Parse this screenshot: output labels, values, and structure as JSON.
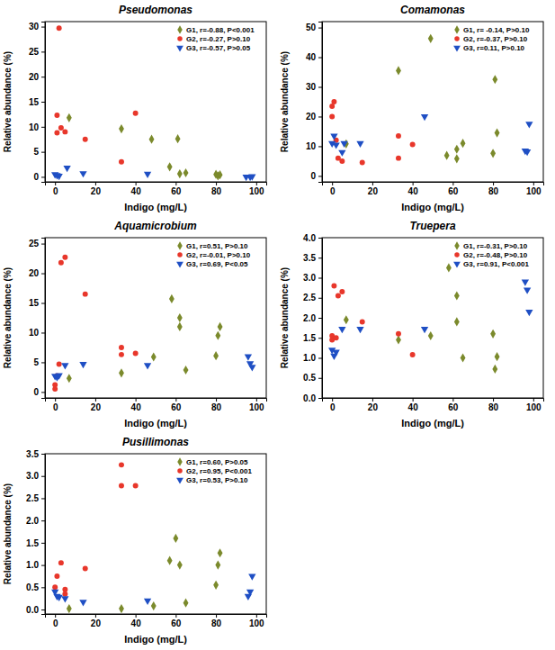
{
  "chart_data": [
    {
      "type": "scatter",
      "title": "Pseudomonas",
      "x_label": "Indigo (mg/L)",
      "y_label": "Relative abundance (%)",
      "xlim": [
        -5,
        105
      ],
      "xticks": [
        0,
        20,
        40,
        60,
        80,
        100
      ],
      "ylim": [
        -1,
        31
      ],
      "yticks": [
        0,
        5,
        10,
        15,
        20,
        25,
        30
      ],
      "grid": false,
      "legend": "upper right",
      "series": [
        {
          "name": "G1, r=-0.88, P<0.001",
          "color": "#7b8a2c",
          "marker": "diamond",
          "x": [
            7,
            33,
            48,
            61,
            57,
            62,
            65,
            80,
            81,
            82
          ],
          "values": [
            11.8,
            9.6,
            7.5,
            7.6,
            2.0,
            0.6,
            0.8,
            0.5,
            0.2,
            0.4
          ]
        },
        {
          "name": "G2, r=-0.27, P>0.10",
          "color": "#e8372b",
          "marker": "circle",
          "x": [
            2,
            1,
            1,
            3,
            5,
            15,
            40,
            33
          ],
          "values": [
            29.7,
            12.3,
            8.8,
            9.8,
            9.0,
            7.5,
            12.7,
            3.0
          ]
        },
        {
          "name": "G3, r=-0.57, P>0.05",
          "color": "#1f4fc4",
          "marker": "triangle-down",
          "x": [
            0,
            1,
            2,
            6,
            14,
            46,
            95,
            97,
            98
          ],
          "values": [
            0.5,
            0.3,
            0.2,
            1.8,
            0.7,
            0.6,
            0.0,
            0.0,
            0.1
          ]
        }
      ]
    },
    {
      "type": "scatter",
      "title": "Comamonas",
      "x_label": "Indigo (mg/L)",
      "y_label": "Relative abundance (%)",
      "xlim": [
        -5,
        105
      ],
      "xticks": [
        0,
        20,
        40,
        60,
        80,
        100
      ],
      "ylim": [
        -2,
        52
      ],
      "yticks": [
        0,
        10,
        20,
        30,
        40,
        50
      ],
      "grid": false,
      "legend": "upper right",
      "series": [
        {
          "name": "G1, r= -0.14, P>0.10",
          "color": "#7b8a2c",
          "marker": "diamond",
          "x": [
            7,
            33,
            49,
            57,
            62,
            62,
            65,
            80,
            81,
            82
          ],
          "values": [
            10.8,
            35.5,
            46.3,
            6.9,
            9.0,
            5.8,
            11.0,
            7.6,
            32.5,
            14.5
          ]
        },
        {
          "name": "G2, r=-0.37, P>0.10",
          "color": "#e8372b",
          "marker": "circle",
          "x": [
            0,
            0,
            1,
            2,
            3,
            5,
            15,
            33,
            33,
            40
          ],
          "values": [
            20.0,
            23.5,
            25.0,
            12.0,
            6.0,
            5.0,
            4.5,
            13.5,
            6.0,
            10.6
          ]
        },
        {
          "name": "G3, r=0.11, P>0.10",
          "color": "#1f4fc4",
          "marker": "triangle-down",
          "x": [
            0,
            1,
            2,
            5,
            6,
            14,
            46,
            96,
            97,
            98
          ],
          "values": [
            11.0,
            13.5,
            10.5,
            8.0,
            11.0,
            11.0,
            20.0,
            8.5,
            8.2,
            17.5
          ]
        }
      ]
    },
    {
      "type": "scatter",
      "title": "Aquamicrobium",
      "x_label": "Indigo (mg/L)",
      "y_label": "Relative abundance (%)",
      "xlim": [
        -5,
        105
      ],
      "xticks": [
        0,
        20,
        40,
        60,
        80,
        100
      ],
      "ylim": [
        -1,
        26
      ],
      "yticks": [
        0,
        5,
        10,
        15,
        20,
        25
      ],
      "grid": false,
      "legend": "upper right",
      "series": [
        {
          "name": "G1, r=0.51, P>0.10",
          "color": "#7b8a2c",
          "marker": "diamond",
          "x": [
            7,
            33,
            49,
            58,
            62,
            62,
            65,
            80,
            81,
            82
          ],
          "values": [
            2.3,
            3.2,
            5.9,
            15.7,
            12.5,
            11.0,
            3.7,
            6.1,
            9.5,
            11.0
          ]
        },
        {
          "name": "G2, r=-0.01, P>0.10",
          "color": "#e8372b",
          "marker": "circle",
          "x": [
            0,
            0,
            1,
            2,
            3,
            5,
            15,
            33,
            33,
            40
          ],
          "values": [
            0.5,
            1.2,
            2.7,
            4.7,
            21.8,
            22.7,
            16.5,
            7.5,
            6.3,
            6.5
          ]
        },
        {
          "name": "G3, r=0.69, P<0.05",
          "color": "#1f4fc4",
          "marker": "triangle-down",
          "x": [
            0,
            1,
            2,
            5,
            14,
            46,
            96,
            97,
            98
          ],
          "values": [
            2.7,
            2.5,
            2.8,
            4.5,
            4.7,
            4.5,
            6.0,
            4.8,
            4.2
          ]
        }
      ]
    },
    {
      "type": "scatter",
      "title": "Truepera",
      "x_label": "Indigo (mg/L)",
      "y_label": "Relative abundance (%)",
      "xlim": [
        -5,
        105
      ],
      "xticks": [
        0,
        20,
        40,
        60,
        80,
        100
      ],
      "ylim": [
        0,
        4
      ],
      "yticks": [
        {
          "value": 0,
          "label": "0.0"
        },
        0.5,
        {
          "value": 1,
          "label": "1.0"
        },
        1.5,
        {
          "value": 2,
          "label": "2.0"
        },
        2.5,
        {
          "value": 3,
          "label": "3.0"
        },
        3.5,
        {
          "value": 4,
          "label": "4.0"
        }
      ],
      "grid": false,
      "legend": "upper right",
      "series": [
        {
          "name": "G1, r=-0.31, P>0.10",
          "color": "#7b8a2c",
          "marker": "diamond",
          "x": [
            7,
            33,
            49,
            58,
            62,
            62,
            65,
            80,
            81,
            82
          ],
          "values": [
            1.95,
            1.45,
            1.55,
            3.25,
            2.55,
            1.9,
            1.0,
            1.6,
            0.72,
            1.03
          ]
        },
        {
          "name": "G2, r=-0.48, P>0.10",
          "color": "#e8372b",
          "marker": "circle",
          "x": [
            0,
            0,
            2,
            1,
            3,
            5,
            15,
            33,
            40
          ],
          "values": [
            1.45,
            1.55,
            1.5,
            2.8,
            2.55,
            2.65,
            1.9,
            1.6,
            1.08
          ]
        },
        {
          "name": "G3, r=0.91, P<0.001",
          "color": "#1f4fc4",
          "marker": "triangle-down",
          "x": [
            0,
            1,
            2,
            5,
            14,
            46,
            96,
            97,
            98
          ],
          "values": [
            1.2,
            1.05,
            1.15,
            1.72,
            1.72,
            1.72,
            2.9,
            2.7,
            2.15
          ]
        }
      ]
    },
    {
      "type": "scatter",
      "title": "Pusillimonas",
      "x_label": "Indigo (mg/L)",
      "y_label": "Relative abundance (%)",
      "xlim": [
        -5,
        105
      ],
      "xticks": [
        0,
        20,
        40,
        60,
        80,
        100
      ],
      "ylim": [
        -0.1,
        3.5
      ],
      "yticks": [
        {
          "value": 0,
          "label": "0.0"
        },
        0.5,
        {
          "value": 1,
          "label": "1.0"
        },
        1.5,
        {
          "value": 2,
          "label": "2.0"
        },
        2.5,
        {
          "value": 3,
          "label": "3.0"
        },
        3.5
      ],
      "grid": false,
      "legend": "upper right",
      "series": [
        {
          "name": "G1, r=0.60, P>0.05",
          "color": "#7b8a2c",
          "marker": "diamond",
          "x": [
            7,
            33,
            49,
            57,
            60,
            62,
            65,
            80,
            81,
            82
          ],
          "values": [
            0.02,
            0.02,
            0.08,
            1.1,
            1.6,
            1.0,
            0.15,
            0.55,
            1.0,
            1.27
          ]
        },
        {
          "name": "G2, r=0.95, P<0.001",
          "color": "#e8372b",
          "marker": "circle",
          "x": [
            0,
            1,
            3,
            5,
            5,
            15,
            33,
            33,
            40
          ],
          "values": [
            0.5,
            0.75,
            1.05,
            0.35,
            0.45,
            0.92,
            3.25,
            2.78,
            2.78
          ]
        },
        {
          "name": "G3, r=0.53, P>0.10",
          "color": "#1f4fc4",
          "marker": "triangle-down",
          "x": [
            0,
            1,
            2,
            5,
            14,
            46,
            96,
            97,
            98
          ],
          "values": [
            0.4,
            0.3,
            0.28,
            0.25,
            0.17,
            0.2,
            0.3,
            0.4,
            0.75
          ]
        }
      ]
    }
  ]
}
